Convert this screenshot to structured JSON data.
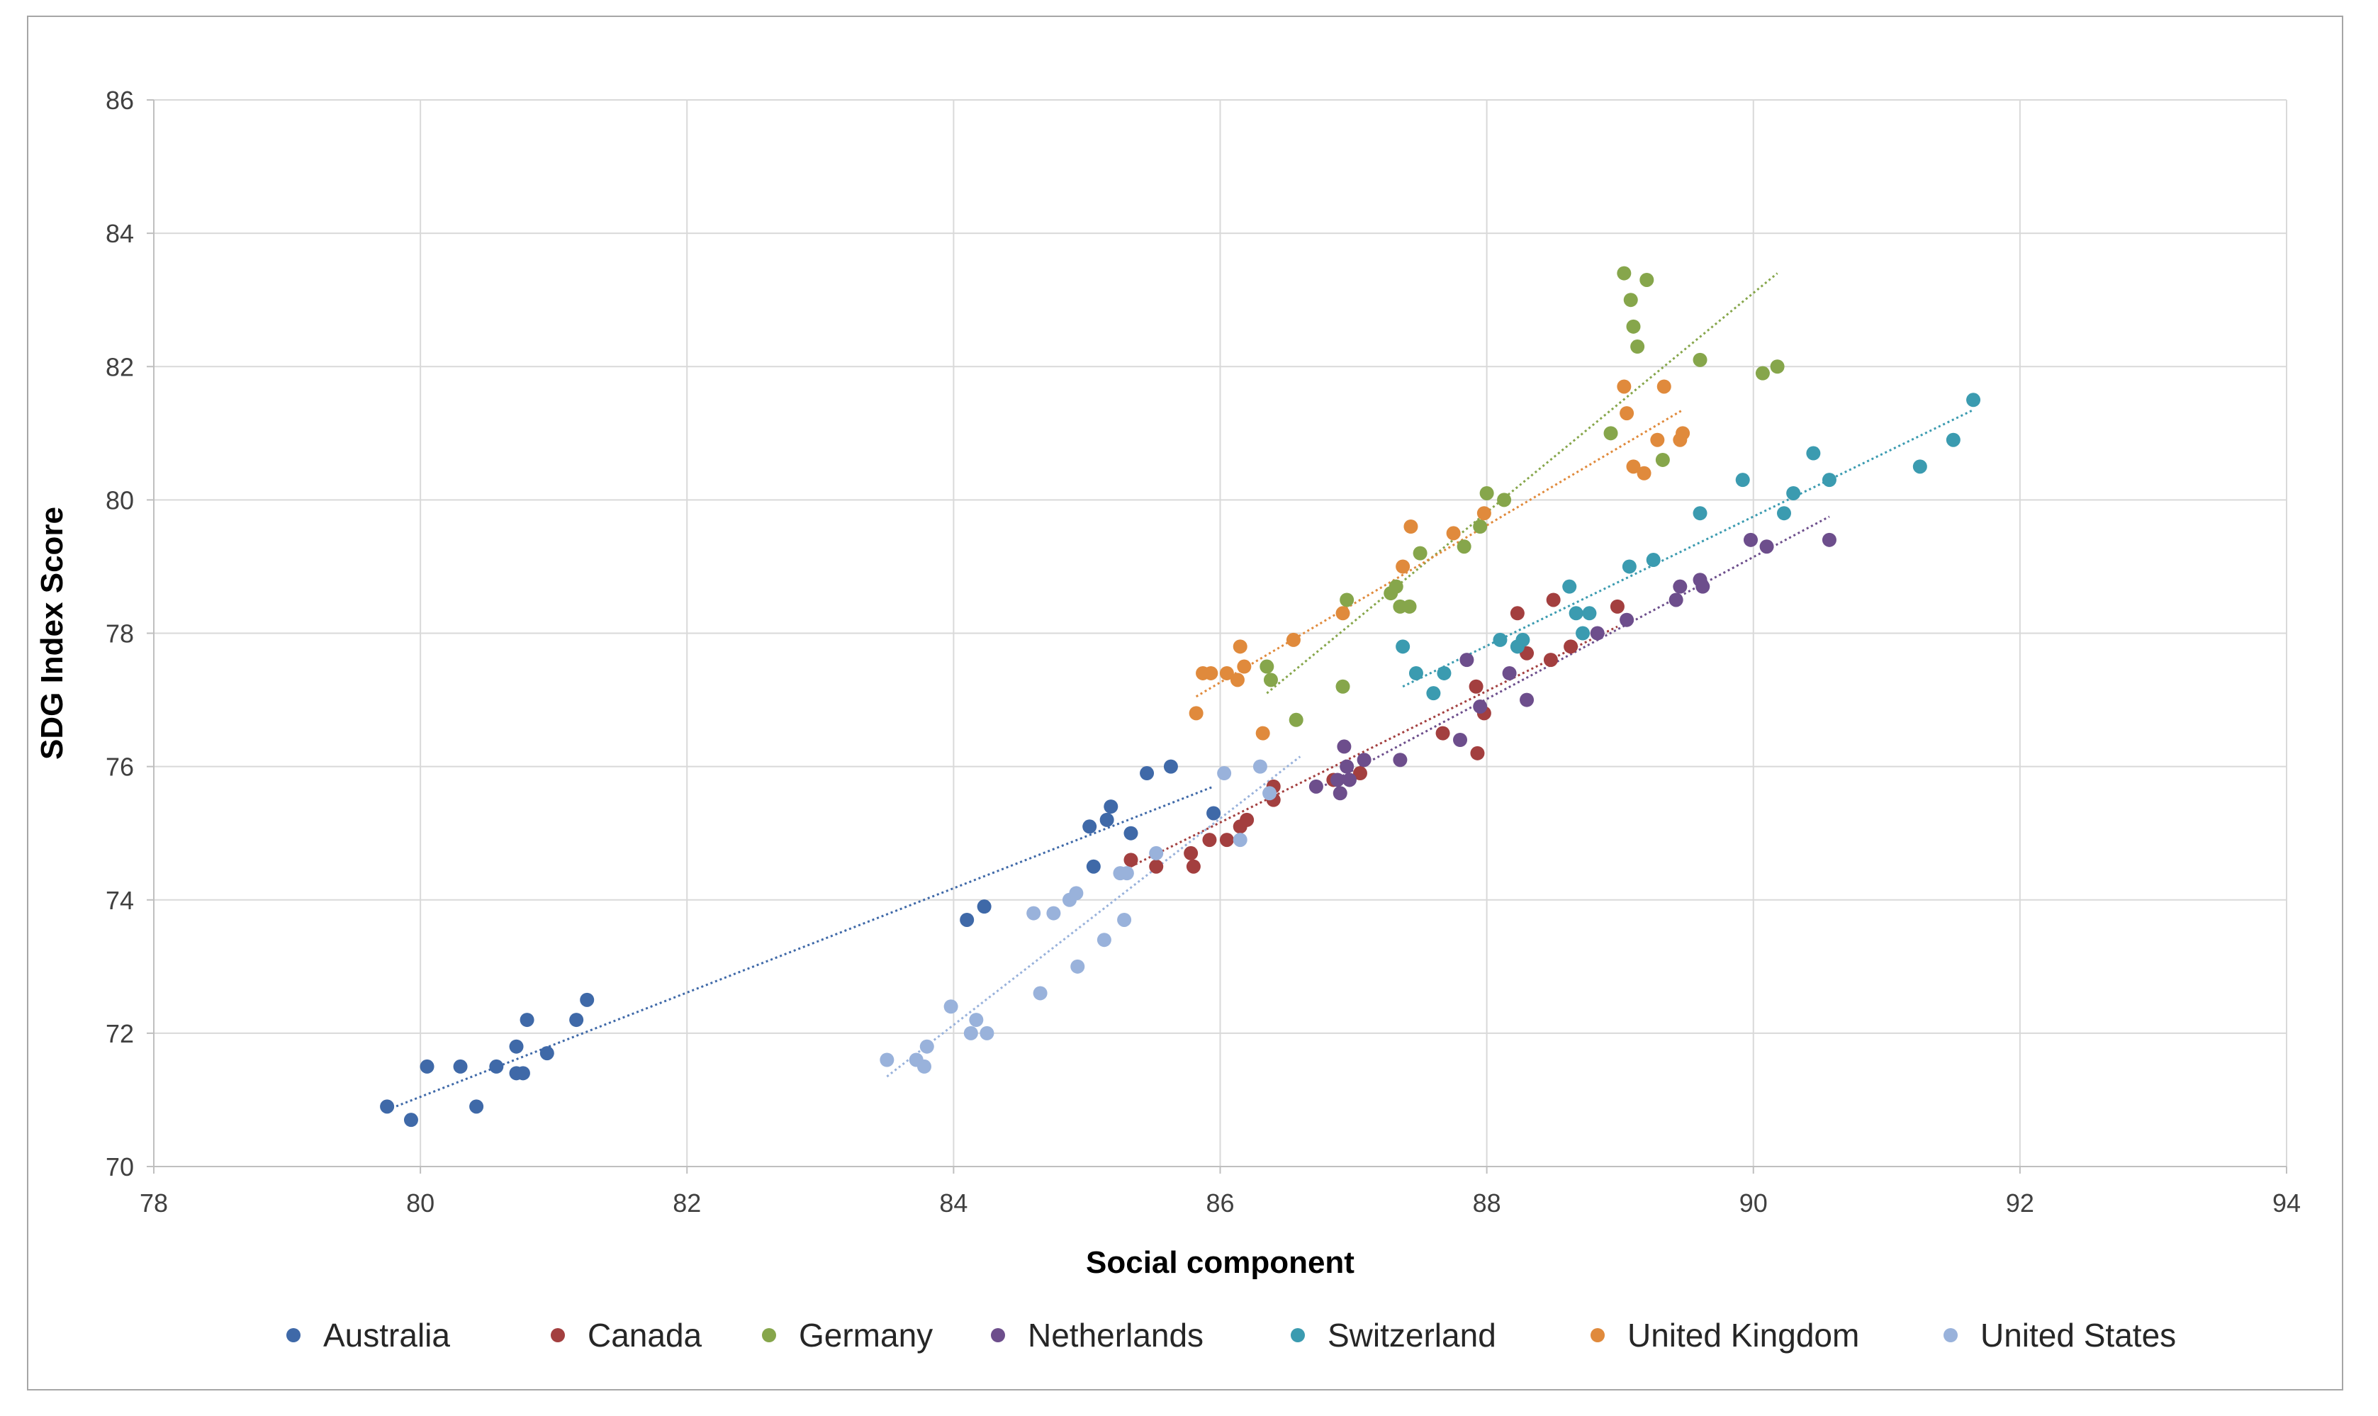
{
  "chart_data": {
    "type": "scatter",
    "title": "",
    "xlabel": "Social component",
    "ylabel": "SDG Index Score",
    "xlim": [
      78,
      94
    ],
    "ylim": [
      70,
      86
    ],
    "xticks": [
      78,
      80,
      82,
      84,
      86,
      88,
      90,
      92,
      94
    ],
    "yticks": [
      70,
      72,
      74,
      76,
      78,
      80,
      82,
      84,
      86
    ],
    "grid": true,
    "legend_position": "bottom",
    "trendlines": "linear, dotted, one per series",
    "series": [
      {
        "name": "Australia",
        "color": "#3f69a8",
        "points": [
          [
            79.75,
            70.9
          ],
          [
            79.93,
            70.7
          ],
          [
            80.05,
            71.5
          ],
          [
            80.3,
            71.5
          ],
          [
            80.42,
            70.9
          ],
          [
            80.57,
            71.5
          ],
          [
            80.72,
            71.8
          ],
          [
            80.72,
            71.4
          ],
          [
            80.77,
            71.4
          ],
          [
            80.8,
            72.2
          ],
          [
            80.95,
            71.7
          ],
          [
            81.17,
            72.2
          ],
          [
            81.25,
            72.5
          ],
          [
            84.1,
            73.7
          ],
          [
            84.23,
            73.9
          ],
          [
            85.02,
            75.1
          ],
          [
            85.05,
            74.5
          ],
          [
            85.15,
            75.2
          ],
          [
            85.18,
            75.4
          ],
          [
            85.33,
            75.0
          ],
          [
            85.45,
            75.9
          ],
          [
            85.63,
            76.0
          ],
          [
            85.95,
            75.3
          ]
        ],
        "trend": [
          [
            79.75,
            70.85
          ],
          [
            85.95,
            75.7
          ]
        ]
      },
      {
        "name": "Canada",
        "color": "#a33f3f",
        "points": [
          [
            85.33,
            74.6
          ],
          [
            85.52,
            74.5
          ],
          [
            85.78,
            74.7
          ],
          [
            85.8,
            74.5
          ],
          [
            85.92,
            74.9
          ],
          [
            86.05,
            74.9
          ],
          [
            86.15,
            75.1
          ],
          [
            86.2,
            75.2
          ],
          [
            86.4,
            75.7
          ],
          [
            86.4,
            75.5
          ],
          [
            86.85,
            75.8
          ],
          [
            87.05,
            75.9
          ],
          [
            87.67,
            76.5
          ],
          [
            87.92,
            77.2
          ],
          [
            87.93,
            76.2
          ],
          [
            87.98,
            76.8
          ],
          [
            88.23,
            78.3
          ],
          [
            88.3,
            77.7
          ],
          [
            88.48,
            77.6
          ],
          [
            88.5,
            78.5
          ],
          [
            88.63,
            77.8
          ],
          [
            88.98,
            78.4
          ]
        ],
        "trend": [
          [
            85.33,
            74.5
          ],
          [
            88.98,
            78.1
          ]
        ]
      },
      {
        "name": "Germany",
        "color": "#86a64b",
        "points": [
          [
            86.35,
            77.5
          ],
          [
            86.38,
            77.3
          ],
          [
            86.57,
            76.7
          ],
          [
            86.92,
            77.2
          ],
          [
            86.95,
            78.5
          ],
          [
            87.28,
            78.6
          ],
          [
            87.32,
            78.7
          ],
          [
            87.35,
            78.4
          ],
          [
            87.42,
            78.4
          ],
          [
            87.5,
            79.2
          ],
          [
            87.83,
            79.3
          ],
          [
            87.95,
            79.6
          ],
          [
            88.0,
            80.1
          ],
          [
            88.13,
            80.0
          ],
          [
            88.93,
            81.0
          ],
          [
            89.03,
            83.4
          ],
          [
            89.08,
            83.0
          ],
          [
            89.1,
            82.6
          ],
          [
            89.13,
            82.3
          ],
          [
            89.2,
            83.3
          ],
          [
            89.32,
            80.6
          ],
          [
            89.6,
            82.1
          ],
          [
            90.07,
            81.9
          ],
          [
            90.18,
            82.0
          ]
        ],
        "trend": [
          [
            86.35,
            77.1
          ],
          [
            90.18,
            83.4
          ]
        ]
      },
      {
        "name": "Netherlands",
        "color": "#6d4e8c",
        "points": [
          [
            86.72,
            75.7
          ],
          [
            86.88,
            75.8
          ],
          [
            86.9,
            75.6
          ],
          [
            86.93,
            76.3
          ],
          [
            86.95,
            76.0
          ],
          [
            86.97,
            75.8
          ],
          [
            87.08,
            76.1
          ],
          [
            87.35,
            76.1
          ],
          [
            87.8,
            76.4
          ],
          [
            87.85,
            77.6
          ],
          [
            87.95,
            76.9
          ],
          [
            88.17,
            77.4
          ],
          [
            88.3,
            77.0
          ],
          [
            88.83,
            78.0
          ],
          [
            89.05,
            78.2
          ],
          [
            89.42,
            78.5
          ],
          [
            89.45,
            78.7
          ],
          [
            89.6,
            78.8
          ],
          [
            89.62,
            78.7
          ],
          [
            89.98,
            79.4
          ],
          [
            90.1,
            79.3
          ],
          [
            90.57,
            79.4
          ]
        ],
        "trend": [
          [
            86.72,
            75.65
          ],
          [
            90.57,
            79.75
          ]
        ]
      },
      {
        "name": "Switzerland",
        "color": "#3b9bb0",
        "points": [
          [
            87.37,
            77.8
          ],
          [
            87.47,
            77.4
          ],
          [
            87.6,
            77.1
          ],
          [
            87.68,
            77.4
          ],
          [
            88.1,
            77.9
          ],
          [
            88.23,
            77.8
          ],
          [
            88.27,
            77.9
          ],
          [
            88.62,
            78.7
          ],
          [
            88.67,
            78.3
          ],
          [
            88.72,
            78.0
          ],
          [
            88.77,
            78.3
          ],
          [
            89.07,
            79.0
          ],
          [
            89.25,
            79.1
          ],
          [
            89.6,
            79.8
          ],
          [
            89.92,
            80.3
          ],
          [
            90.23,
            79.8
          ],
          [
            90.3,
            80.1
          ],
          [
            90.45,
            80.7
          ],
          [
            90.57,
            80.3
          ],
          [
            91.25,
            80.5
          ],
          [
            91.5,
            80.9
          ],
          [
            91.65,
            81.5
          ]
        ],
        "trend": [
          [
            87.37,
            77.2
          ],
          [
            91.65,
            81.35
          ]
        ]
      },
      {
        "name": "United Kingdom",
        "color": "#e08a3c",
        "points": [
          [
            85.82,
            76.8
          ],
          [
            85.87,
            77.4
          ],
          [
            85.93,
            77.4
          ],
          [
            86.05,
            77.4
          ],
          [
            86.13,
            77.3
          ],
          [
            86.15,
            77.8
          ],
          [
            86.18,
            77.5
          ],
          [
            86.32,
            76.5
          ],
          [
            86.55,
            77.9
          ],
          [
            86.92,
            78.3
          ],
          [
            87.37,
            79.0
          ],
          [
            87.43,
            79.6
          ],
          [
            87.75,
            79.5
          ],
          [
            87.98,
            79.8
          ],
          [
            89.03,
            81.7
          ],
          [
            89.05,
            81.3
          ],
          [
            89.1,
            80.5
          ],
          [
            89.18,
            80.4
          ],
          [
            89.28,
            80.9
          ],
          [
            89.33,
            81.7
          ],
          [
            89.45,
            80.9
          ],
          [
            89.47,
            81.0
          ]
        ],
        "trend": [
          [
            85.82,
            77.05
          ],
          [
            89.47,
            81.35
          ]
        ]
      },
      {
        "name": "United States",
        "color": "#99b2db",
        "points": [
          [
            83.5,
            71.6
          ],
          [
            83.72,
            71.6
          ],
          [
            83.78,
            71.5
          ],
          [
            83.8,
            71.8
          ],
          [
            83.98,
            72.4
          ],
          [
            84.13,
            72.0
          ],
          [
            84.17,
            72.2
          ],
          [
            84.25,
            72.0
          ],
          [
            84.6,
            73.8
          ],
          [
            84.65,
            72.6
          ],
          [
            84.75,
            73.8
          ],
          [
            84.87,
            74.0
          ],
          [
            84.92,
            74.1
          ],
          [
            84.93,
            73.0
          ],
          [
            85.13,
            73.4
          ],
          [
            85.25,
            74.4
          ],
          [
            85.28,
            73.7
          ],
          [
            85.3,
            74.4
          ],
          [
            85.52,
            74.7
          ],
          [
            86.03,
            75.9
          ],
          [
            86.15,
            74.9
          ],
          [
            86.3,
            76.0
          ],
          [
            86.37,
            75.6
          ]
        ],
        "trend": [
          [
            83.5,
            71.35
          ],
          [
            86.6,
            76.15
          ]
        ]
      }
    ]
  }
}
